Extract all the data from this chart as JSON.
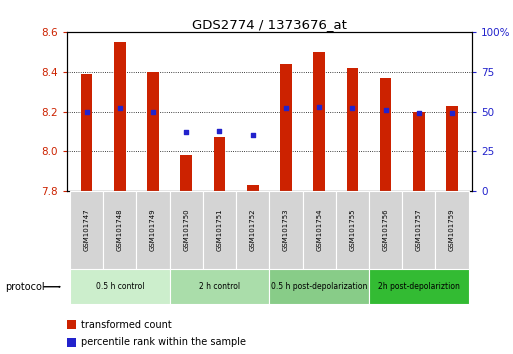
{
  "title": "GDS2774 / 1373676_at",
  "samples": [
    "GSM101747",
    "GSM101748",
    "GSM101749",
    "GSM101750",
    "GSM101751",
    "GSM101752",
    "GSM101753",
    "GSM101754",
    "GSM101755",
    "GSM101756",
    "GSM101757",
    "GSM101759"
  ],
  "transformed_count": [
    8.39,
    8.55,
    8.4,
    7.98,
    8.07,
    7.83,
    8.44,
    8.5,
    8.42,
    8.37,
    8.2,
    8.23
  ],
  "percentile_rank": [
    50,
    52,
    50,
    37,
    38,
    35,
    52,
    53,
    52,
    51,
    49,
    49
  ],
  "ylim": [
    7.8,
    8.6
  ],
  "yticks_left": [
    7.8,
    8.0,
    8.2,
    8.4,
    8.6
  ],
  "yticks_right": [
    0,
    25,
    50,
    75,
    100
  ],
  "bar_color": "#cc2200",
  "dot_color": "#2222cc",
  "bg_color": "#ffffff",
  "grid_color": "#000000",
  "protocols": [
    {
      "label": "0.5 h control",
      "start": 0,
      "end": 3,
      "color": "#cceecc"
    },
    {
      "label": "2 h control",
      "start": 3,
      "end": 6,
      "color": "#aaddaa"
    },
    {
      "label": "0.5 h post-depolarization",
      "start": 6,
      "end": 9,
      "color": "#88cc88"
    },
    {
      "label": "2h post-depolariztion",
      "start": 9,
      "end": 12,
      "color": "#33bb33"
    }
  ],
  "legend_items": [
    {
      "label": "transformed count",
      "color": "#cc2200"
    },
    {
      "label": "percentile rank within the sample",
      "color": "#2222cc"
    }
  ],
  "bar_width": 0.35
}
